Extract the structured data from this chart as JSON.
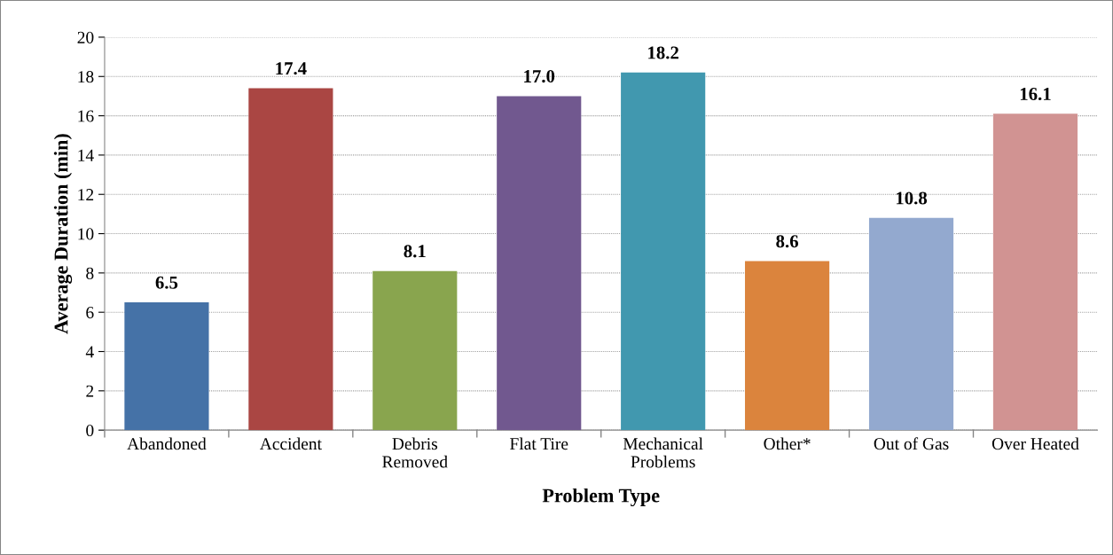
{
  "chart_data": {
    "type": "bar",
    "categories": [
      "Abandoned",
      "Accident",
      "Debris\nRemoved",
      "Flat Tire",
      "Mechanical\nProblems",
      "Other*",
      "Out of Gas",
      "Over Heated"
    ],
    "values": [
      6.5,
      17.4,
      8.1,
      17.0,
      18.2,
      8.6,
      10.8,
      16.1
    ],
    "value_labels": [
      "6.5",
      "17.4",
      "8.1",
      "17.0",
      "18.2",
      "8.6",
      "10.8",
      "16.1"
    ],
    "colors": [
      "#4572a7",
      "#aa4643",
      "#89a54e",
      "#71588f",
      "#4198af",
      "#db843d",
      "#93a9cf",
      "#d19392"
    ],
    "xlabel": "Problem Type",
    "ylabel": "Average Duration (min)",
    "ylim": [
      0,
      20
    ],
    "yticks": [
      0,
      2,
      4,
      6,
      8,
      10,
      12,
      14,
      16,
      18,
      20
    ],
    "grid": "y",
    "legend": false
  }
}
